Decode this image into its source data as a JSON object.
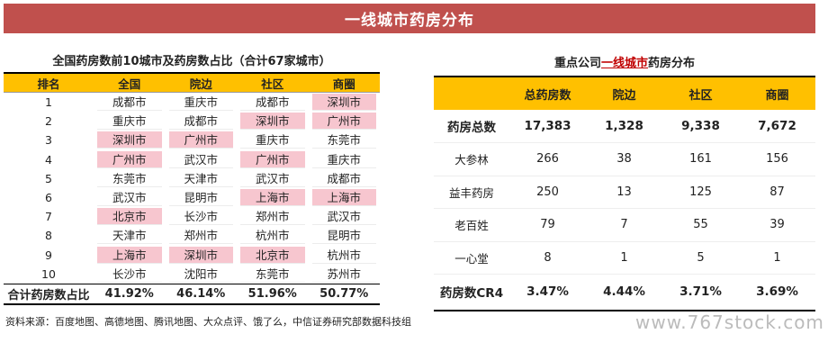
{
  "title": "一线城市药房分布",
  "left": {
    "title": "全国药房数前10城市及药房数占比（合计67家城市）",
    "headers": [
      "排名",
      "全国",
      "院边",
      "社区",
      "商圈"
    ],
    "rows": [
      {
        "rank": "1",
        "cells": [
          "成都市",
          "重庆市",
          "成都市",
          "深圳市"
        ],
        "hl": [
          false,
          false,
          false,
          true
        ]
      },
      {
        "rank": "2",
        "cells": [
          "重庆市",
          "成都市",
          "深圳市",
          "广州市"
        ],
        "hl": [
          false,
          false,
          true,
          true
        ]
      },
      {
        "rank": "3",
        "cells": [
          "深圳市",
          "广州市",
          "重庆市",
          "东莞市"
        ],
        "hl": [
          true,
          true,
          false,
          false
        ]
      },
      {
        "rank": "4",
        "cells": [
          "广州市",
          "武汉市",
          "广州市",
          "重庆市"
        ],
        "hl": [
          true,
          false,
          true,
          false
        ]
      },
      {
        "rank": "5",
        "cells": [
          "东莞市",
          "天津市",
          "武汉市",
          "成都市"
        ],
        "hl": [
          false,
          false,
          false,
          false
        ]
      },
      {
        "rank": "6",
        "cells": [
          "武汉市",
          "昆明市",
          "上海市",
          "上海市"
        ],
        "hl": [
          false,
          false,
          true,
          true
        ]
      },
      {
        "rank": "7",
        "cells": [
          "北京市",
          "长沙市",
          "郑州市",
          "武汉市"
        ],
        "hl": [
          true,
          false,
          false,
          false
        ]
      },
      {
        "rank": "8",
        "cells": [
          "天津市",
          "郑州市",
          "杭州市",
          "昆明市"
        ],
        "hl": [
          false,
          false,
          false,
          false
        ]
      },
      {
        "rank": "9",
        "cells": [
          "上海市",
          "深圳市",
          "北京市",
          "杭州市"
        ],
        "hl": [
          true,
          true,
          true,
          false
        ]
      },
      {
        "rank": "10",
        "cells": [
          "长沙市",
          "沈阳市",
          "东莞市",
          "苏州市"
        ],
        "hl": [
          false,
          false,
          false,
          false
        ]
      }
    ],
    "total": {
      "label": "合计药房数占比",
      "values": [
        "41.92%",
        "46.14%",
        "51.96%",
        "50.77%"
      ]
    }
  },
  "right": {
    "title_pre": "重点公司",
    "title_hl": "一线城市",
    "title_post": "药房分布",
    "headers": [
      "",
      "总药房数",
      "院边",
      "社区",
      "商圈"
    ],
    "rows": [
      {
        "label": "药房总数",
        "values": [
          "17,383",
          "1,328",
          "9,338",
          "7,672"
        ],
        "bold": true
      },
      {
        "label": "大参林",
        "values": [
          "266",
          "38",
          "161",
          "156"
        ],
        "bold": false
      },
      {
        "label": "益丰药房",
        "values": [
          "250",
          "13",
          "125",
          "87"
        ],
        "bold": false
      },
      {
        "label": "老百姓",
        "values": [
          "79",
          "7",
          "55",
          "39"
        ],
        "bold": false
      },
      {
        "label": "一心堂",
        "values": [
          "8",
          "1",
          "5",
          "1"
        ],
        "bold": false
      }
    ],
    "cr4": {
      "label": "药房数CR4",
      "values": [
        "3.47%",
        "4.44%",
        "3.71%",
        "3.69%"
      ]
    }
  },
  "source": "资料来源：百度地图、高德地图、腾讯地图、大众点评、饿了么，中信证券研究部数据科技组",
  "watermark": "www.767stock.com",
  "colors": {
    "title_bg": "#c0504d",
    "header_bg": "#ffc000",
    "highlight": "#f7c6cf",
    "accent_red": "#c00000"
  }
}
